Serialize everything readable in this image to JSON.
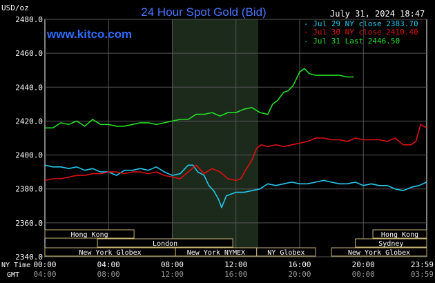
{
  "header": {
    "title": "24 Hour Spot Gold (Bid)",
    "date": "July 31, 2024 18:47",
    "watermark": "www.kitco.com",
    "y_unit": "USD/oz"
  },
  "legend": [
    {
      "label": "- Jul 29 NY close 2383.70",
      "color": "#22c8f0"
    },
    {
      "label": "- Jul 30 NY close 2410.40",
      "color": "#e01010"
    },
    {
      "label": "- Jul 31 Last 2446.50",
      "color": "#22e022"
    }
  ],
  "axis": {
    "y_ticks": [
      "2480.0",
      "2460.0",
      "2440.0",
      "2420.0",
      "2400.0",
      "2380.0",
      "2360.0",
      "2340.0"
    ],
    "ny_label": "NY Time",
    "gmt_label": "GMT",
    "ny_ticks": [
      "00:00",
      "04:00",
      "08:00",
      "12:00",
      "16:00",
      "20:00",
      "23:59"
    ],
    "gmt_ticks": [
      "04:00",
      "08:00",
      "12:00",
      "16:00",
      "20:00",
      "00:00",
      "03:59"
    ]
  },
  "sessions": [
    {
      "label": "Hong Kong",
      "start": 0.0,
      "end": 5.6,
      "row": 0
    },
    {
      "label": "London",
      "start": 3.3,
      "end": 11.8,
      "row": 1
    },
    {
      "label": "New York Globex",
      "start": 0.0,
      "end": 8.2,
      "row": 2
    },
    {
      "label": "New York NYMEX",
      "start": 8.2,
      "end": 13.3,
      "row": 2
    },
    {
      "label": "NY Globex",
      "start": 13.3,
      "end": 17.0,
      "row": 2
    },
    {
      "label": "Hong Kong",
      "start": 20.6,
      "end": 23.98,
      "row": 0
    },
    {
      "label": "Sydney",
      "start": 19.5,
      "end": 23.98,
      "row": 1
    },
    {
      "label": "New York Globex",
      "start": 18.0,
      "end": 23.98,
      "row": 2
    }
  ],
  "chart_data": {
    "type": "line",
    "title": "24 Hour Spot Gold (Bid)",
    "ylabel": "USD/oz",
    "xlabel": "NY Time",
    "xlim": [
      0,
      23.98
    ],
    "ylim": [
      2340,
      2480
    ],
    "highlight_band": [
      8.0,
      13.4
    ],
    "grid": true,
    "legend_position": "top-right",
    "series": [
      {
        "name": "Jul 29 NY close 2383.70",
        "color": "#22c8f0",
        "x": [
          0,
          0.5,
          1,
          1.5,
          2,
          2.5,
          3,
          3.5,
          4,
          4.5,
          5,
          5.5,
          6,
          6.5,
          7,
          7.5,
          8,
          8.5,
          9,
          9.3,
          9.6,
          10,
          10.3,
          10.6,
          10.9,
          11.1,
          11.4,
          11.7,
          12,
          12.5,
          13,
          13.5,
          14,
          14.5,
          15,
          15.5,
          16,
          16.5,
          17,
          17.5,
          18,
          18.5,
          19,
          19.5,
          20,
          20.5,
          21,
          21.5,
          22,
          22.5,
          23,
          23.5,
          23.98
        ],
        "y": [
          2394,
          2393,
          2393,
          2392,
          2393,
          2391,
          2392,
          2390,
          2390,
          2388,
          2391,
          2391,
          2392,
          2391,
          2393,
          2390,
          2388,
          2389,
          2394,
          2394,
          2390,
          2388,
          2382,
          2379,
          2374,
          2369,
          2376,
          2377,
          2378,
          2378,
          2379,
          2380,
          2383,
          2382,
          2383,
          2384,
          2383,
          2383,
          2384,
          2385,
          2384,
          2383,
          2383,
          2384,
          2382,
          2383,
          2382,
          2382,
          2380,
          2379,
          2381,
          2382,
          2384
        ]
      },
      {
        "name": "Jul 30 NY close 2410.40",
        "color": "#e01010",
        "x": [
          0,
          0.5,
          1,
          1.5,
          2,
          2.5,
          3,
          3.5,
          4,
          4.5,
          5,
          5.5,
          6,
          6.5,
          7,
          7.5,
          8,
          8.5,
          9,
          9.5,
          10,
          10.5,
          11,
          11.5,
          12,
          12.3,
          12.6,
          13,
          13.3,
          13.6,
          14,
          14.5,
          15,
          15.5,
          16,
          16.5,
          17,
          17.5,
          18,
          18.5,
          19,
          19.5,
          20,
          20.5,
          21,
          21.5,
          22,
          22.5,
          23,
          23.3,
          23.6,
          23.98
        ],
        "y": [
          2385,
          2386,
          2386,
          2387,
          2388,
          2388,
          2389,
          2389,
          2390,
          2390,
          2389,
          2390,
          2390,
          2389,
          2390,
          2388,
          2387,
          2386,
          2390,
          2394,
          2389,
          2392,
          2390,
          2386,
          2385,
          2386,
          2391,
          2397,
          2404,
          2406,
          2405,
          2406,
          2405,
          2406,
          2407,
          2408,
          2410,
          2410,
          2409,
          2409,
          2408,
          2410,
          2409,
          2409,
          2409,
          2408,
          2410,
          2406,
          2406,
          2408,
          2418,
          2416
        ]
      },
      {
        "name": "Jul 31 Last 2446.50",
        "color": "#22e022",
        "x": [
          0,
          0.5,
          1,
          1.5,
          2,
          2.5,
          3,
          3.5,
          4,
          4.5,
          5,
          5.5,
          6,
          6.5,
          7,
          7.5,
          8,
          8.5,
          9,
          9.5,
          10,
          10.5,
          11,
          11.5,
          12,
          12.5,
          13,
          13.5,
          14,
          14.3,
          14.6,
          15,
          15.3,
          15.6,
          16,
          16.3,
          16.6,
          17,
          17.5,
          18,
          18.5,
          19,
          19.4
        ],
        "y": [
          2416,
          2416,
          2419,
          2418,
          2420,
          2417,
          2421,
          2418,
          2418,
          2417,
          2417,
          2418,
          2419,
          2419,
          2418,
          2419,
          2420,
          2421,
          2421,
          2424,
          2424,
          2425,
          2423,
          2425,
          2425,
          2427,
          2428,
          2425,
          2424,
          2430,
          2432,
          2437,
          2438,
          2441,
          2449,
          2451,
          2448,
          2447,
          2447,
          2447,
          2447,
          2446,
          2446
        ]
      }
    ]
  }
}
